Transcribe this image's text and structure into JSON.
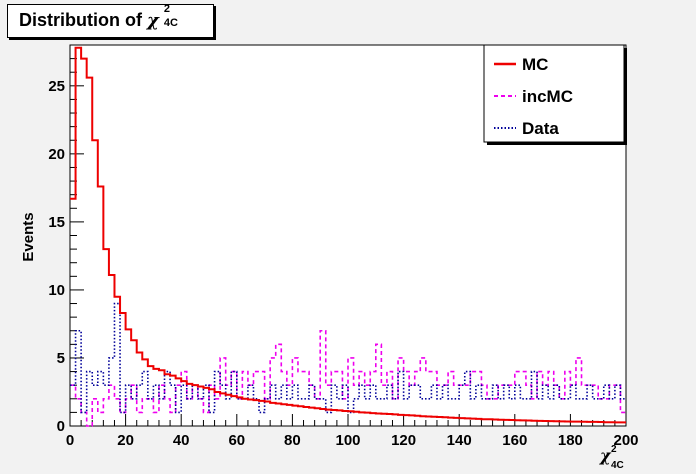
{
  "title": {
    "main": "Distribution of",
    "symbol": "χ",
    "sup": "2",
    "sub": "4C"
  },
  "chart_data": {
    "type": "histogram",
    "xlabel": {
      "symbol": "χ",
      "sup": "2",
      "sub": "4C"
    },
    "ylabel": "Events",
    "xlim": [
      0,
      200
    ],
    "ylim": [
      0,
      28
    ],
    "x_ticks": [
      "0",
      "20",
      "40",
      "60",
      "80",
      "100",
      "120",
      "140",
      "160",
      "180",
      "200"
    ],
    "y_ticks": [
      "0",
      "5",
      "10",
      "15",
      "20",
      "25"
    ],
    "bin_width": 2,
    "legend_position": "top-right",
    "series": [
      {
        "name": "MC",
        "color": "#ee0000",
        "style": "solid",
        "values": [
          16.7,
          27.8,
          27.0,
          25.6,
          21.0,
          17.6,
          13.0,
          11.1,
          9.5,
          8.3,
          7.1,
          6.3,
          5.4,
          4.9,
          4.4,
          4.2,
          4.1,
          3.8,
          3.7,
          3.5,
          3.3,
          3.1,
          3.0,
          2.9,
          2.8,
          2.7,
          2.5,
          2.4,
          2.3,
          2.2,
          2.1,
          2.0,
          1.95,
          1.9,
          1.85,
          1.8,
          1.7,
          1.65,
          1.6,
          1.55,
          1.5,
          1.45,
          1.4,
          1.35,
          1.3,
          1.25,
          1.2,
          1.18,
          1.15,
          1.1,
          1.08,
          1.05,
          1.0,
          0.98,
          0.95,
          0.92,
          0.9,
          0.88,
          0.85,
          0.82,
          0.8,
          0.78,
          0.75,
          0.72,
          0.7,
          0.68,
          0.66,
          0.64,
          0.62,
          0.6,
          0.58,
          0.56,
          0.54,
          0.52,
          0.5,
          0.5,
          0.48,
          0.46,
          0.45,
          0.44,
          0.42,
          0.41,
          0.4,
          0.39,
          0.38,
          0.37,
          0.36,
          0.35,
          0.34,
          0.33,
          0.32,
          0.32,
          0.31,
          0.3,
          0.3,
          0.29,
          0.28,
          0.28,
          0.27,
          0.27
        ]
      },
      {
        "name": "incMC",
        "color": "#ee00ee",
        "style": "dashed",
        "values": [
          3.0,
          2.0,
          1.0,
          0.0,
          2.0,
          1.0,
          2.0,
          3.0,
          2.0,
          1.0,
          2.0,
          3.0,
          1.0,
          2.0,
          2.0,
          1.0,
          3.0,
          2.0,
          1.0,
          3.0,
          4.0,
          2.0,
          3.0,
          2.0,
          1.0,
          3.0,
          2.0,
          5.0,
          3.0,
          4.0,
          2.0,
          4.0,
          3.0,
          4.0,
          4.0,
          2.0,
          5.0,
          6.0,
          4.0,
          3.0,
          5.0,
          4.0,
          4.0,
          3.0,
          2.0,
          7.0,
          3.0,
          4.0,
          4.0,
          2.0,
          5.0,
          3.0,
          4.0,
          3.0,
          4.0,
          6.0,
          3.0,
          4.0,
          2.0,
          5.0,
          4.0,
          3.0,
          4.0,
          5.0,
          4.0,
          4.0,
          3.0,
          3.0,
          4.0,
          3.0,
          3.0,
          3.0,
          4.0,
          4.0,
          3.0,
          2.0,
          2.0,
          3.0,
          3.0,
          3.0,
          4.0,
          4.0,
          3.0,
          2.0,
          4.0,
          3.0,
          4.0,
          3.0,
          2.0,
          4.0,
          3.0,
          5.0,
          3.0,
          3.0,
          3.0,
          2.0,
          2.0,
          3.0,
          3.0,
          1.0
        ]
      },
      {
        "name": "Data",
        "color": "#000099",
        "style": "dotted",
        "values": [
          3.0,
          7.0,
          1.0,
          4.0,
          3.0,
          4.0,
          3.0,
          5.0,
          9.0,
          1.0,
          3.0,
          2.0,
          3.0,
          4.0,
          2.0,
          3.0,
          2.0,
          4.0,
          3.0,
          1.0,
          3.0,
          2.0,
          3.0,
          2.0,
          3.0,
          1.0,
          4.0,
          3.0,
          2.0,
          4.0,
          2.0,
          2.0,
          3.0,
          2.0,
          1.0,
          2.0,
          3.0,
          2.0,
          3.0,
          2.0,
          3.0,
          2.0,
          2.0,
          3.0,
          2.0,
          2.0,
          1.0,
          3.0,
          2.0,
          3.0,
          1.0,
          2.0,
          3.0,
          2.0,
          3.0,
          2.0,
          2.0,
          3.0,
          2.0,
          4.0,
          2.0,
          3.0,
          3.0,
          2.0,
          2.0,
          3.0,
          2.0,
          3.0,
          2.0,
          2.0,
          3.0,
          4.0,
          2.0,
          3.0,
          2.0,
          2.0,
          3.0,
          2.0,
          3.0,
          2.0,
          3.0,
          2.0,
          2.0,
          4.0,
          2.0,
          3.0,
          2.0,
          3.0,
          2.0,
          2.0,
          3.0,
          2.0,
          2.0,
          3.0,
          2.0,
          2.0,
          3.0,
          2.0,
          3.0,
          2.0
        ]
      }
    ]
  }
}
